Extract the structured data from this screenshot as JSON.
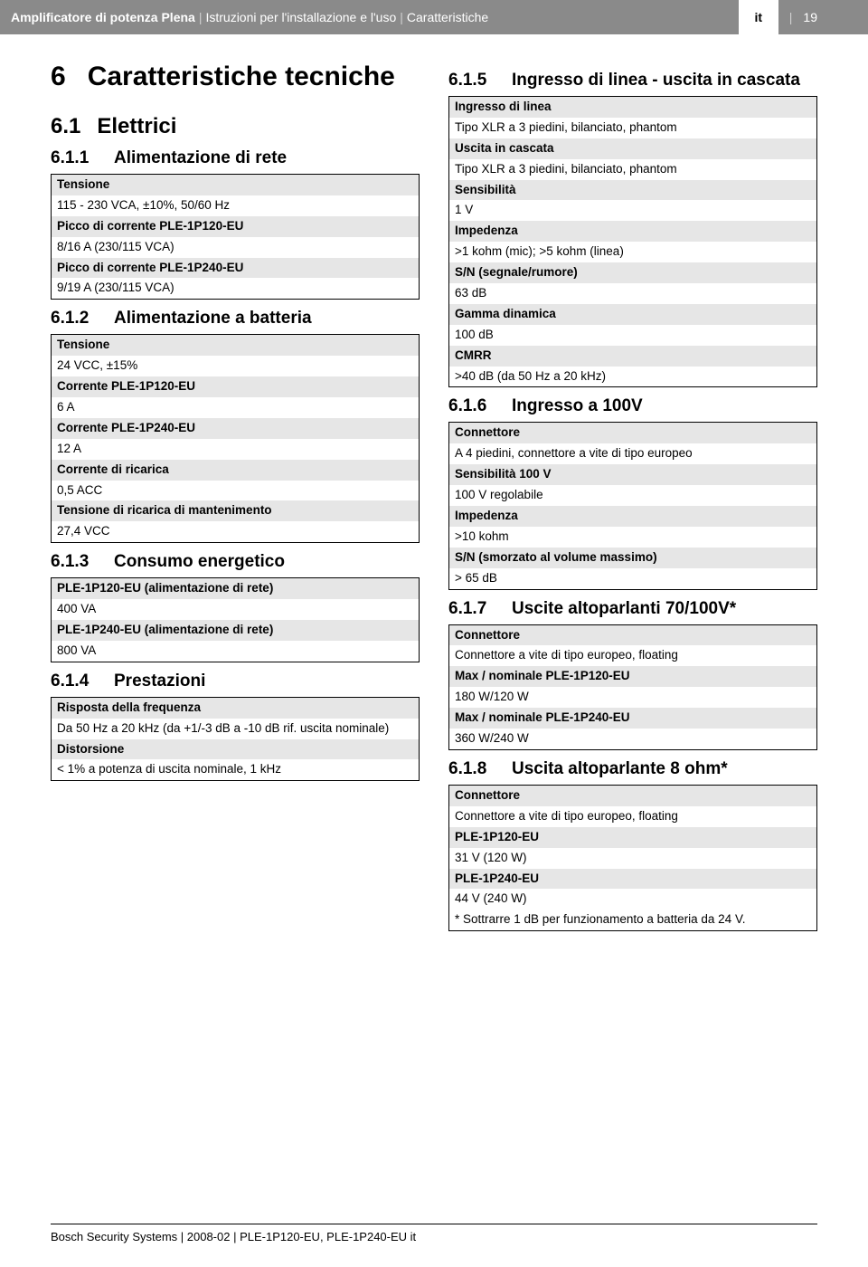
{
  "header": {
    "product": "Amplificatore di potenza Plena",
    "doc": "Istruzioni per l'installazione e l'uso",
    "section": "Caratteristiche",
    "lang": "it",
    "page": "19"
  },
  "chapter": {
    "num": "6",
    "title": "Caratteristiche tecniche"
  },
  "s61": {
    "num": "6.1",
    "title": "Elettrici"
  },
  "s611": {
    "num": "6.1.1",
    "title": "Alimentazione di rete",
    "rows": [
      {
        "l": "Tensione",
        "v": "115 - 230 VCA, ±10%, 50/60 Hz"
      },
      {
        "l": "Picco di corrente  PLE-1P120-EU",
        "v": "8/16 A (230/115 VCA)"
      },
      {
        "l": "Picco di corrente PLE-1P240-EU",
        "v": "9/19 A (230/115 VCA)"
      }
    ]
  },
  "s612": {
    "num": "6.1.2",
    "title": "Alimentazione a batteria",
    "rows": [
      {
        "l": "Tensione",
        "v": "24 VCC, ±15%"
      },
      {
        "l": "Corrente PLE-1P120-EU",
        "v": "6 A"
      },
      {
        "l": "Corrente PLE-1P240-EU",
        "v": "12 A"
      },
      {
        "l": "Corrente di ricarica",
        "v": "0,5 ACC"
      },
      {
        "l": "Tensione di ricarica di mantenimento",
        "v": "27,4 VCC"
      }
    ]
  },
  "s613": {
    "num": "6.1.3",
    "title": "Consumo energetico",
    "rows": [
      {
        "l": "PLE-1P120-EU (alimentazione di rete)",
        "v": "400 VA"
      },
      {
        "l": "PLE-1P240-EU (alimentazione di rete)",
        "v": "800 VA"
      }
    ]
  },
  "s614": {
    "num": "6.1.4",
    "title": "Prestazioni",
    "rows": [
      {
        "l": "Risposta della frequenza",
        "v": "Da 50 Hz a 20 kHz (da +1/-3 dB a -10 dB rif. uscita nominale)"
      },
      {
        "l": "Distorsione",
        "v": "< 1% a potenza di uscita nominale, 1 kHz"
      }
    ]
  },
  "s615": {
    "num": "6.1.5",
    "title": "Ingresso di linea - uscita in cascata",
    "rows": [
      {
        "l": "Ingresso di linea",
        "v": "Tipo XLR a 3 piedini, bilanciato, phantom"
      },
      {
        "l": "Uscita in cascata",
        "v": "Tipo XLR a 3 piedini, bilanciato, phantom"
      },
      {
        "l": "Sensibilità",
        "v": "1 V"
      },
      {
        "l": "Impedenza",
        "v": ">1 kohm (mic); >5 kohm (linea)"
      },
      {
        "l": "S/N (segnale/rumore)",
        "v": "63 dB"
      },
      {
        "l": "Gamma dinamica",
        "v": "100 dB"
      },
      {
        "l": "CMRR",
        "v": ">40 dB (da 50 Hz a 20 kHz)"
      }
    ]
  },
  "s616": {
    "num": "6.1.6",
    "title": "Ingresso a 100V",
    "rows": [
      {
        "l": "Connettore",
        "v": "A 4 piedini, connettore a vite di tipo europeo"
      },
      {
        "l": "Sensibilità 100 V",
        "v": "100 V regolabile"
      },
      {
        "l": "Impedenza",
        "v": ">10 kohm"
      },
      {
        "l": "S/N (smorzato al volume massimo)",
        "v": "> 65 dB"
      }
    ]
  },
  "s617": {
    "num": "6.1.7",
    "title": "Uscite altoparlanti 70/100V*",
    "rows": [
      {
        "l": "Connettore",
        "v": "Connettore a vite di tipo europeo, floating"
      },
      {
        "l": "Max / nominale PLE-1P120-EU",
        "v": "180 W/120 W"
      },
      {
        "l": "Max / nominale PLE-1P240-EU",
        "v": "360 W/240 W"
      }
    ]
  },
  "s618": {
    "num": "6.1.8",
    "title": "Uscita altoparlante 8 ohm*",
    "rows": [
      {
        "l": "Connettore",
        "v": "Connettore a vite di tipo europeo, floating"
      },
      {
        "l": "PLE-1P120-EU",
        "v": "31 V (120 W)"
      },
      {
        "l": "PLE-1P240-EU",
        "v": "44 V (240 W)"
      }
    ],
    "footnote": "* Sottrarre 1 dB per funzionamento a batteria da 24 V."
  },
  "footer": "Bosch Security Systems | 2008-02 | PLE-1P120-EU,  PLE-1P240-EU it"
}
